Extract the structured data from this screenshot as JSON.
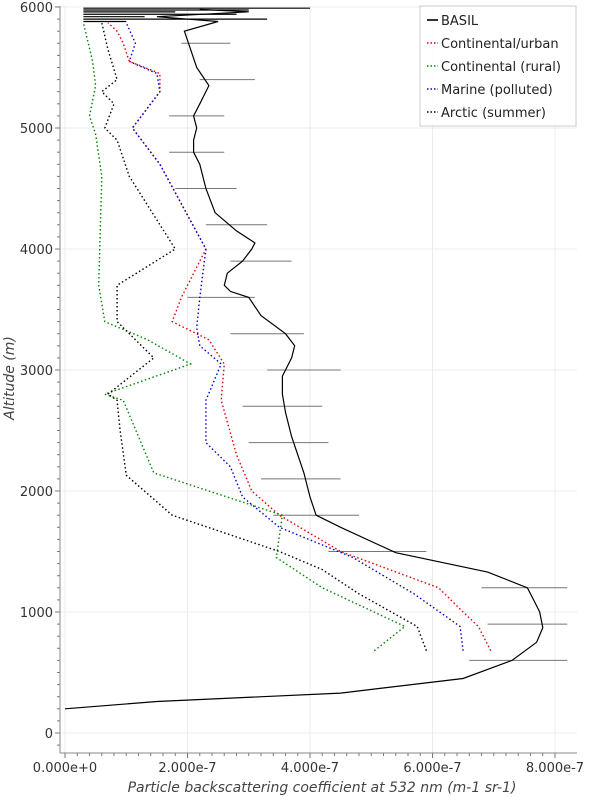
{
  "chart_data": {
    "type": "line",
    "xlabel": "Particle backscattering coefficient at 532 nm",
    "xlabel_unit": "(m-1 sr-1)",
    "ylabel": "Altitude (m)",
    "xlim": [
      0,
      8.2e-07
    ],
    "ylim": [
      -150,
      6000
    ],
    "x_ticks": [
      0,
      2e-07,
      4e-07,
      6e-07,
      8e-07
    ],
    "x_tick_labels": [
      "0.000e+0",
      "2.000e-7",
      "4.000e-7",
      "6.000e-7",
      "8.000e-7"
    ],
    "y_ticks": [
      0,
      1000,
      2000,
      3000,
      4000,
      5000,
      6000
    ],
    "y_tick_labels": [
      "0",
      "1000",
      "2000",
      "3000",
      "4000",
      "5000",
      "6000"
    ],
    "grid": true,
    "legend_position": "top-right",
    "series": [
      {
        "name": "BASIL",
        "color": "#000000",
        "style": "solid",
        "x": [
          0,
          1.5e-07,
          4.5e-07,
          6.5e-07,
          7.3e-07,
          7.7e-07,
          7.8e-07,
          7.75e-07,
          7.65e-07,
          7.55e-07,
          6.9e-07,
          5.4e-07,
          4.5e-07,
          4.1e-07,
          4e-07,
          3.9e-07,
          3.7e-07,
          3.6e-07,
          3.55e-07,
          3.55e-07,
          3.6e-07,
          3.7e-07,
          3.75e-07,
          3.6e-07,
          3.2e-07,
          3e-07,
          2.7e-07,
          2.6e-07,
          2.65e-07,
          2.9e-07,
          3.05e-07,
          3.1e-07,
          2.8e-07,
          2.45e-07,
          2.3e-07,
          2.2e-07,
          2.1e-07,
          2.1e-07,
          2.15e-07,
          2.1e-07,
          2.2e-07,
          2.35e-07,
          2.15e-07,
          2.05e-07,
          1.95e-07,
          2.5e-07,
          1.5e-07,
          3e-07,
          2.2e-07
        ],
        "y": [
          200,
          260,
          330,
          450,
          600,
          750,
          870,
          1000,
          1100,
          1200,
          1330,
          1490,
          1700,
          1800,
          1950,
          2150,
          2450,
          2650,
          2800,
          2950,
          3000,
          3100,
          3200,
          3300,
          3450,
          3600,
          3650,
          3700,
          3800,
          3900,
          4000,
          4050,
          4150,
          4300,
          4500,
          4700,
          4800,
          4900,
          5000,
          5100,
          5200,
          5350,
          5500,
          5650,
          5800,
          5880,
          5920,
          5960,
          5980
        ]
      },
      {
        "name": "Continental/urban",
        "color": "#e00000",
        "style": "dotted",
        "x": [
          6.95e-07,
          6.75e-07,
          6.5e-07,
          6.1e-07,
          4.5e-07,
          3.5e-07,
          3.05e-07,
          2.8e-07,
          2.55e-07,
          2.6e-07,
          2.35e-07,
          1.75e-07,
          1.9e-07,
          2.3e-07,
          1.55e-07,
          1.1e-07,
          1.55e-07,
          1.55e-07,
          1.05e-07,
          9.5e-08,
          8.5e-08,
          7e-08
        ],
        "y": [
          680,
          880,
          1000,
          1200,
          1500,
          1800,
          2000,
          2300,
          2750,
          3050,
          3250,
          3400,
          3600,
          4000,
          4700,
          5000,
          5300,
          5450,
          5550,
          5700,
          5800,
          5870
        ]
      },
      {
        "name": "Continental (rural)",
        "color": "#008000",
        "style": "dotted",
        "x": [
          5.05e-07,
          5.55e-07,
          4.2e-07,
          3.45e-07,
          3.55e-07,
          1.45e-07,
          9.5e-08,
          6.5e-08,
          2.05e-07,
          1.35e-07,
          6.5e-08,
          5.5e-08,
          6e-08,
          5e-08,
          4e-08,
          5e-08,
          4.5e-08,
          3e-08
        ],
        "y": [
          680,
          880,
          1200,
          1450,
          1800,
          2150,
          2750,
          2800,
          3050,
          3250,
          3400,
          3700,
          4600,
          4950,
          5100,
          5350,
          5550,
          5870
        ]
      },
      {
        "name": "Marine (polluted)",
        "color": "#0000d0",
        "style": "dotted",
        "x": [
          6.5e-07,
          6.45e-07,
          5.7e-07,
          4.7e-07,
          3.5e-07,
          2.9e-07,
          2.7e-07,
          2.3e-07,
          2.3e-07,
          2.55e-07,
          2.2e-07,
          2.15e-07,
          2.2e-07,
          2.3e-07,
          1.55e-07,
          1.1e-07,
          1.55e-07,
          1.5e-07,
          1.05e-07,
          1.15e-07,
          1e-07
        ],
        "y": [
          680,
          880,
          1150,
          1450,
          1700,
          1950,
          2200,
          2400,
          2750,
          3050,
          3200,
          3350,
          3600,
          4000,
          4700,
          5000,
          5300,
          5450,
          5550,
          5700,
          5870
        ]
      },
      {
        "name": "Arctic (summer)",
        "color": "#000000",
        "style": "dotted",
        "x": [
          5.9e-07,
          5.75e-07,
          4.8e-07,
          4.2e-07,
          3.5e-07,
          1.75e-07,
          1e-07,
          9e-08,
          8.5e-08,
          7e-08,
          1.45e-07,
          8.5e-08,
          8.5e-08,
          1.8e-07,
          1.05e-07,
          8.5e-08,
          6.5e-08,
          8e-08,
          6e-08,
          8.5e-08,
          7e-08,
          6e-08
        ],
        "y": [
          680,
          880,
          1150,
          1350,
          1500,
          1800,
          2130,
          2500,
          2750,
          2800,
          3100,
          3400,
          3700,
          4000,
          4600,
          4900,
          5000,
          5200,
          5300,
          5400,
          5650,
          5870
        ]
      }
    ],
    "error_bars": [
      {
        "y": 1200,
        "xmin": 6.8e-07,
        "xmax": 8.2e-07
      },
      {
        "y": 900,
        "xmin": 6.9e-07,
        "xmax": 8.2e-07
      },
      {
        "y": 600,
        "xmin": 6.6e-07,
        "xmax": 8.2e-07
      },
      {
        "y": 1500,
        "xmin": 4.3e-07,
        "xmax": 5.9e-07
      },
      {
        "y": 1800,
        "xmin": 3.4e-07,
        "xmax": 4.8e-07
      },
      {
        "y": 2100,
        "xmin": 3.2e-07,
        "xmax": 4.5e-07
      },
      {
        "y": 2400,
        "xmin": 3e-07,
        "xmax": 4.3e-07
      },
      {
        "y": 2700,
        "xmin": 2.9e-07,
        "xmax": 4.2e-07
      },
      {
        "y": 3000,
        "xmin": 3.3e-07,
        "xmax": 4.5e-07
      },
      {
        "y": 3300,
        "xmin": 2.7e-07,
        "xmax": 3.9e-07
      },
      {
        "y": 3600,
        "xmin": 2e-07,
        "xmax": 3.1e-07
      },
      {
        "y": 3900,
        "xmin": 2.7e-07,
        "xmax": 3.7e-07
      },
      {
        "y": 4200,
        "xmin": 2.3e-07,
        "xmax": 3.3e-07
      },
      {
        "y": 4500,
        "xmin": 1.8e-07,
        "xmax": 2.8e-07
      },
      {
        "y": 4800,
        "xmin": 1.7e-07,
        "xmax": 2.6e-07
      },
      {
        "y": 5100,
        "xmin": 1.7e-07,
        "xmax": 2.6e-07
      },
      {
        "y": 5400,
        "xmin": 2.2e-07,
        "xmax": 3.1e-07
      },
      {
        "y": 5700,
        "xmin": 1.9e-07,
        "xmax": 2.7e-07
      }
    ]
  }
}
